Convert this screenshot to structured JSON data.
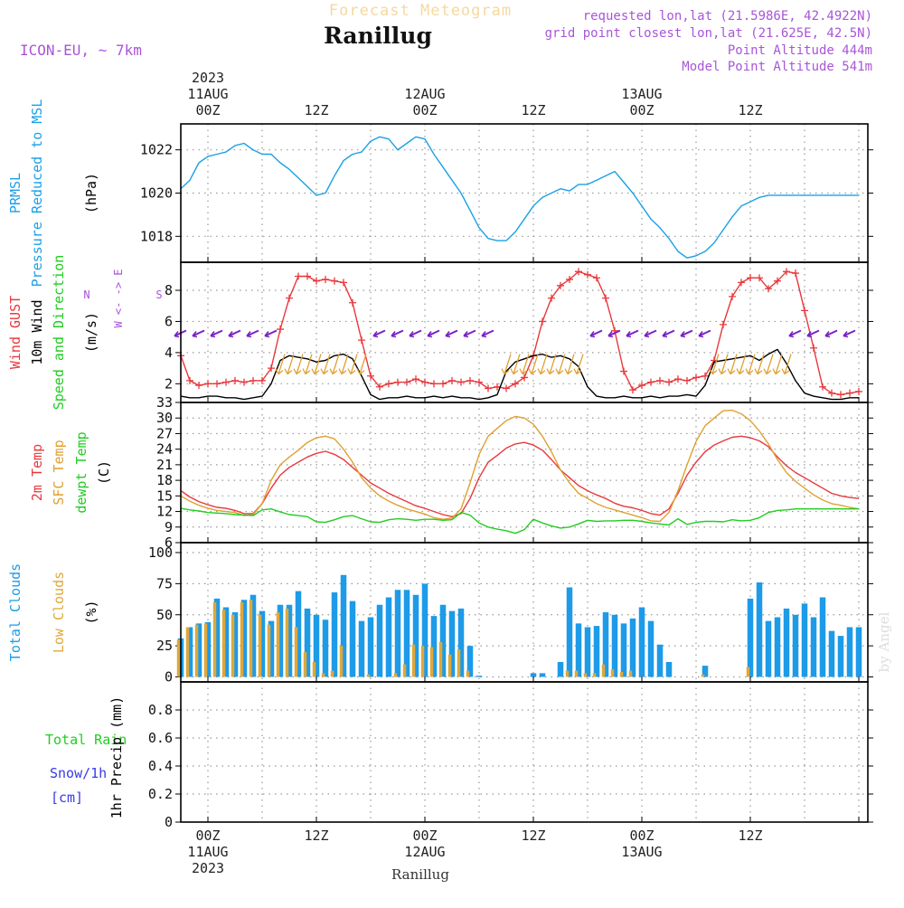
{
  "header": {
    "product": "Forecast Meteogram",
    "model": "ICON-EU, ~ 7km",
    "station": "Ranillug",
    "requested": "requested lon,lat (21.5986E, 42.4922N)",
    "gridpoint": "grid point closest lon,lat (21.625E, 42.5N)",
    "point_alt": "Point Altitude 444m",
    "model_alt": "Model Point Altitude 541m",
    "footer_station": "Ranillug",
    "credit": "by Angel"
  },
  "time_axis": {
    "top_labels": [
      {
        "hour": 0,
        "lines": [
          "2023",
          "11AUG",
          "00Z"
        ]
      },
      {
        "hour": 12,
        "lines": [
          "12Z"
        ]
      },
      {
        "hour": 24,
        "lines": [
          "12AUG",
          "00Z"
        ]
      },
      {
        "hour": 36,
        "lines": [
          "12Z"
        ]
      },
      {
        "hour": 48,
        "lines": [
          "13AUG",
          "00Z"
        ]
      },
      {
        "hour": 60,
        "lines": [
          "12Z"
        ]
      }
    ],
    "bottom_labels": [
      {
        "hour": 0,
        "lines": [
          "00Z",
          "11AUG",
          "2023"
        ]
      },
      {
        "hour": 12,
        "lines": [
          "12Z"
        ]
      },
      {
        "hour": 24,
        "lines": [
          "00Z",
          "12AUG"
        ]
      },
      {
        "hour": 36,
        "lines": [
          "12Z"
        ]
      },
      {
        "hour": 48,
        "lines": [
          "00Z",
          "13AUG"
        ]
      },
      {
        "hour": 60,
        "lines": [
          "12Z"
        ]
      }
    ],
    "start_hour": -3,
    "end_hour": 73
  },
  "colors": {
    "purple": "#a855d8",
    "pressure": "#1aa0e8",
    "gust": "#e8383c",
    "wind": "#000000",
    "green": "#22cc22",
    "sfc": "#e0a030",
    "total_cloud": "#1d9be8",
    "low_cloud": "#dfa83a",
    "snow": "#3a3ae8",
    "grid": "#999999"
  },
  "chart_data": [
    {
      "type": "line",
      "name": "pressure",
      "axis_lines": [
        "PRMSL",
        "Pressure Reduced to MSL"
      ],
      "ylabel": "(hPa)",
      "ylim": [
        1016.8,
        1023.2
      ],
      "yticks": [
        1018,
        1020,
        1022
      ],
      "x": [
        -3,
        -2,
        -1,
        0,
        1,
        2,
        3,
        4,
        5,
        6,
        7,
        8,
        9,
        10,
        11,
        12,
        13,
        14,
        15,
        16,
        17,
        18,
        19,
        20,
        21,
        22,
        23,
        24,
        25,
        26,
        27,
        28,
        29,
        30,
        31,
        32,
        33,
        34,
        35,
        36,
        37,
        38,
        39,
        40,
        41,
        42,
        43,
        44,
        45,
        46,
        47,
        48,
        49,
        50,
        51,
        52,
        53,
        54,
        55,
        56,
        57,
        58,
        59,
        60,
        61,
        62,
        63,
        64,
        65,
        66,
        67,
        68,
        69,
        70,
        71,
        72
      ],
      "series": [
        {
          "values": [
            1020.2,
            1020.6,
            1021.4,
            1021.7,
            1021.8,
            1021.9,
            1022.2,
            1022.3,
            1022.0,
            1021.8,
            1021.8,
            1021.4,
            1021.1,
            1020.7,
            1020.3,
            1019.9,
            1020.0,
            1020.8,
            1021.5,
            1021.8,
            1021.9,
            1022.4,
            1022.6,
            1022.5,
            1022.0,
            1022.3,
            1022.6,
            1022.5,
            1021.8,
            1021.2,
            1020.6,
            1020.0,
            1019.2,
            1018.4,
            1017.9,
            1017.8,
            1017.8,
            1018.2,
            1018.8,
            1019.4,
            1019.8,
            1020.0,
            1020.2,
            1020.1,
            1020.4,
            1020.4,
            1020.6,
            1020.8,
            1021.0,
            1020.5,
            1020.0,
            1019.4,
            1018.8,
            1018.4,
            1017.9,
            1017.3,
            1017.0,
            1017.1,
            1017.3,
            1017.7,
            1018.3,
            1018.9,
            1019.4,
            1019.6,
            1019.8,
            1019.9,
            1019.9,
            1019.9,
            1019.9,
            1019.9,
            1019.9,
            1019.9,
            1019.9,
            1019.9,
            1019.9,
            1019.9
          ]
        }
      ]
    },
    {
      "type": "line",
      "name": "wind",
      "axis_lines": [
        "Wind GUST",
        "10m Wind",
        "Speed and Direction"
      ],
      "ylabel": "(m/s)",
      "compass": [
        "N",
        "W <- -> E",
        "S"
      ],
      "ylim": [
        0.8,
        9.8
      ],
      "yticks": [
        2,
        4,
        6,
        8
      ],
      "x": [
        -3,
        -2,
        -1,
        0,
        1,
        2,
        3,
        4,
        5,
        6,
        7,
        8,
        9,
        10,
        11,
        12,
        13,
        14,
        15,
        16,
        17,
        18,
        19,
        20,
        21,
        22,
        23,
        24,
        25,
        26,
        27,
        28,
        29,
        30,
        31,
        32,
        33,
        34,
        35,
        36,
        37,
        38,
        39,
        40,
        41,
        42,
        43,
        44,
        45,
        46,
        47,
        48,
        49,
        50,
        51,
        52,
        53,
        54,
        55,
        56,
        57,
        58,
        59,
        60,
        61,
        62,
        63,
        64,
        65,
        66,
        67,
        68,
        69,
        70,
        71,
        72
      ],
      "series": [
        {
          "name": "gust",
          "values": [
            3.8,
            2.2,
            1.9,
            2.0,
            2.0,
            2.1,
            2.2,
            2.1,
            2.2,
            2.2,
            3.0,
            5.5,
            7.5,
            8.9,
            8.9,
            8.6,
            8.7,
            8.6,
            8.5,
            7.2,
            4.8,
            2.5,
            1.8,
            2.0,
            2.1,
            2.1,
            2.3,
            2.1,
            2.0,
            2.0,
            2.2,
            2.1,
            2.2,
            2.1,
            1.7,
            1.8,
            1.7,
            2.0,
            2.4,
            3.8,
            6.0,
            7.5,
            8.3,
            8.7,
            9.2,
            9.0,
            8.8,
            7.5,
            5.4,
            2.8,
            1.6,
            1.9,
            2.1,
            2.2,
            2.1,
            2.3,
            2.2,
            2.4,
            2.5,
            3.5,
            5.8,
            7.6,
            8.5,
            8.8,
            8.8,
            8.1,
            8.6,
            9.2,
            9.1,
            6.7,
            4.3,
            1.8,
            1.4,
            1.3,
            1.4,
            1.5
          ]
        },
        {
          "name": "wind",
          "values": [
            1.2,
            1.1,
            1.1,
            1.2,
            1.2,
            1.1,
            1.1,
            1.0,
            1.1,
            1.2,
            2.0,
            3.5,
            3.8,
            3.7,
            3.6,
            3.4,
            3.5,
            3.8,
            3.9,
            3.6,
            2.5,
            1.3,
            1.0,
            1.1,
            1.1,
            1.2,
            1.1,
            1.1,
            1.2,
            1.1,
            1.2,
            1.1,
            1.1,
            1.0,
            1.1,
            1.3,
            2.8,
            3.4,
            3.6,
            3.8,
            3.9,
            3.7,
            3.8,
            3.6,
            3.1,
            1.8,
            1.2,
            1.1,
            1.1,
            1.2,
            1.1,
            1.1,
            1.2,
            1.1,
            1.2,
            1.2,
            1.3,
            1.2,
            1.9,
            3.4,
            3.5,
            3.6,
            3.7,
            3.8,
            3.5,
            3.9,
            4.2,
            3.3,
            2.2,
            1.4,
            1.2,
            1.1,
            1.0,
            1.0,
            1.1,
            1.1
          ]
        }
      ]
    },
    {
      "type": "line",
      "name": "temperature",
      "axis_lines": [
        "2m Temp",
        "SFC Temp",
        "dewpt Temp"
      ],
      "ylabel": "(C)",
      "ylim": [
        6,
        33
      ],
      "yticks": [
        6,
        9,
        12,
        15,
        18,
        21,
        24,
        27,
        30,
        33
      ],
      "x": [
        -3,
        -2,
        -1,
        0,
        1,
        2,
        3,
        4,
        5,
        6,
        7,
        8,
        9,
        10,
        11,
        12,
        13,
        14,
        15,
        16,
        17,
        18,
        19,
        20,
        21,
        22,
        23,
        24,
        25,
        26,
        27,
        28,
        29,
        30,
        31,
        32,
        33,
        34,
        35,
        36,
        37,
        38,
        39,
        40,
        41,
        42,
        43,
        44,
        45,
        46,
        47,
        48,
        49,
        50,
        51,
        52,
        53,
        54,
        55,
        56,
        57,
        58,
        59,
        60,
        61,
        62,
        63,
        64,
        65,
        66,
        67,
        68,
        69,
        70,
        71,
        72
      ],
      "series": [
        {
          "name": "2m",
          "values": [
            16.0,
            14.8,
            13.9,
            13.3,
            12.8,
            12.6,
            12.2,
            11.6,
            11.6,
            13.5,
            16.5,
            19.0,
            20.5,
            21.5,
            22.5,
            23.2,
            23.6,
            23.0,
            22.0,
            20.5,
            19.0,
            17.5,
            16.5,
            15.5,
            14.7,
            13.9,
            13.1,
            12.6,
            12.0,
            11.4,
            11.0,
            11.6,
            14.5,
            18.5,
            21.5,
            22.8,
            24.2,
            25.0,
            25.3,
            24.8,
            23.8,
            22.0,
            20.0,
            18.5,
            17.0,
            16.0,
            15.2,
            14.5,
            13.6,
            13.0,
            12.7,
            12.2,
            11.6,
            11.3,
            12.5,
            15.5,
            19.0,
            21.5,
            23.5,
            24.8,
            25.6,
            26.3,
            26.5,
            26.2,
            25.6,
            24.5,
            22.5,
            20.8,
            19.5,
            18.5,
            17.5,
            16.5,
            15.5,
            15.0,
            14.7,
            14.5
          ]
        },
        {
          "name": "sfc",
          "values": [
            15.0,
            14.0,
            13.2,
            12.6,
            12.2,
            12.0,
            11.8,
            11.2,
            11.4,
            13.5,
            18.0,
            21.0,
            22.5,
            23.8,
            25.3,
            26.2,
            26.5,
            26.0,
            24.0,
            21.5,
            18.5,
            16.5,
            15.0,
            14.0,
            13.2,
            12.5,
            12.0,
            11.5,
            10.8,
            10.5,
            10.7,
            12.5,
            17.5,
            23.0,
            26.5,
            28.0,
            29.5,
            30.3,
            30.0,
            28.8,
            26.5,
            23.5,
            20.0,
            17.5,
            15.5,
            14.5,
            13.5,
            12.8,
            12.3,
            11.8,
            11.3,
            10.8,
            10.2,
            10.1,
            11.8,
            16.0,
            21.0,
            25.5,
            28.5,
            30.0,
            31.4,
            31.5,
            30.8,
            29.5,
            27.5,
            25.0,
            22.0,
            19.5,
            17.8,
            16.5,
            15.2,
            14.2,
            13.5,
            13.2,
            12.8,
            12.5
          ]
        },
        {
          "name": "dewpt",
          "values": [
            12.6,
            12.3,
            12.1,
            11.8,
            11.7,
            11.6,
            11.4,
            11.3,
            11.2,
            12.3,
            12.5,
            11.9,
            11.4,
            11.2,
            11.0,
            10.0,
            9.9,
            10.4,
            11.0,
            11.2,
            10.6,
            10.0,
            9.9,
            10.4,
            10.6,
            10.5,
            10.3,
            10.5,
            10.5,
            10.3,
            10.4,
            11.8,
            11.3,
            9.8,
            9.0,
            8.6,
            8.3,
            7.8,
            8.5,
            10.5,
            9.8,
            9.2,
            8.8,
            9.0,
            9.6,
            10.3,
            10.1,
            10.2,
            10.2,
            10.3,
            10.3,
            10.1,
            9.8,
            9.6,
            9.4,
            10.6,
            9.5,
            9.9,
            10.1,
            10.1,
            10.0,
            10.4,
            10.2,
            10.3,
            10.8,
            11.8,
            12.2,
            12.3,
            12.5,
            12.5,
            12.5,
            12.5,
            12.5,
            12.5,
            12.5,
            12.5
          ]
        }
      ]
    },
    {
      "type": "bar",
      "name": "clouds",
      "axis_lines": [
        "Total Clouds",
        "Low Clouds"
      ],
      "ylabel": "(%)",
      "ylim": [
        -4,
        108
      ],
      "yticks": [
        0,
        25,
        50,
        75,
        100
      ],
      "x": [
        -3,
        -2,
        -1,
        0,
        1,
        2,
        3,
        4,
        5,
        6,
        7,
        8,
        9,
        10,
        11,
        12,
        13,
        14,
        15,
        16,
        17,
        18,
        19,
        20,
        21,
        22,
        23,
        24,
        25,
        26,
        27,
        28,
        29,
        30,
        31,
        32,
        33,
        34,
        35,
        36,
        37,
        38,
        39,
        40,
        41,
        42,
        43,
        44,
        45,
        46,
        47,
        48,
        49,
        50,
        51,
        52,
        53,
        54,
        55,
        56,
        57,
        58,
        59,
        60,
        61,
        62,
        63,
        64,
        65,
        66,
        67,
        68,
        69,
        70,
        71,
        72
      ],
      "series": [
        {
          "name": "total",
          "values": [
            31,
            40,
            43,
            44,
            63,
            56,
            52,
            62,
            66,
            53,
            45,
            58,
            58,
            69,
            55,
            50,
            46,
            68,
            82,
            61,
            45,
            48,
            58,
            64,
            70,
            70,
            66,
            75,
            49,
            58,
            53,
            55,
            25,
            1,
            0,
            0,
            0,
            0,
            0,
            3,
            3,
            0,
            12,
            72,
            43,
            40,
            41,
            52,
            50,
            43,
            47,
            56,
            45,
            26,
            12,
            0,
            0,
            0,
            9,
            0,
            0,
            0,
            0,
            63,
            76,
            45,
            48,
            55,
            50,
            59,
            48,
            64,
            37,
            33,
            40,
            40
          ]
        },
        {
          "name": "low",
          "values": [
            30,
            40,
            42,
            43,
            60,
            54,
            50,
            60,
            62,
            50,
            42,
            52,
            55,
            40,
            20,
            12,
            3,
            5,
            25,
            0,
            0,
            2,
            0,
            0,
            3,
            10,
            26,
            25,
            24,
            28,
            18,
            22,
            5,
            0,
            0,
            0,
            0,
            0,
            0,
            0,
            0,
            0,
            0,
            5,
            5,
            3,
            3,
            10,
            6,
            4,
            5,
            0,
            0,
            0,
            0,
            0,
            0,
            0,
            2,
            0,
            0,
            0,
            0,
            8,
            0,
            0,
            0,
            0,
            0,
            0,
            0,
            0,
            0,
            0,
            0,
            0
          ]
        }
      ]
    },
    {
      "type": "bar",
      "name": "precip",
      "axis_lines": [
        "Total Rain",
        "Snow/1h",
        "[cm]"
      ],
      "ylabel": "1hr Precip (mm)",
      "ylim": [
        0,
        1
      ],
      "yticks": [
        0,
        0.2,
        0.4,
        0.6,
        0.8
      ],
      "x": [],
      "series": []
    }
  ]
}
